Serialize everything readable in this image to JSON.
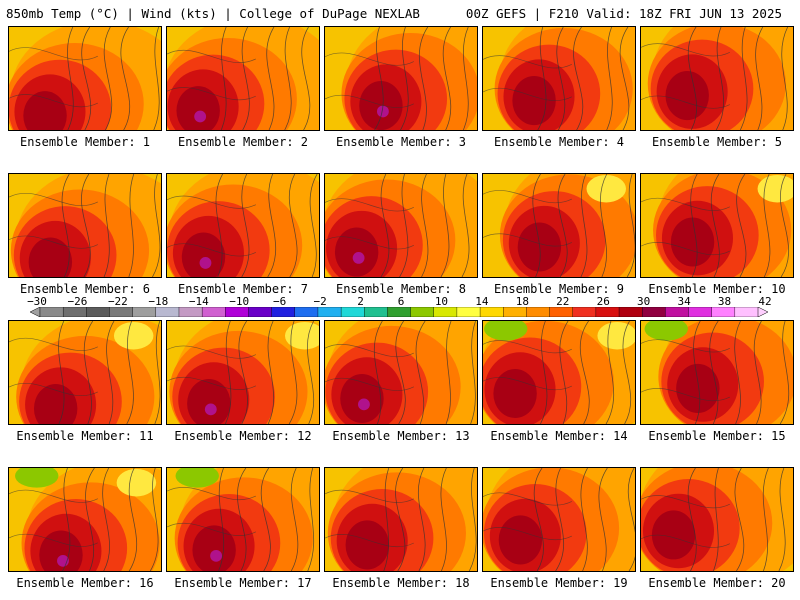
{
  "header": {
    "left": "850mb Temp (°C) | Wind (kts) | College of DuPage NEXLAB",
    "right": "00Z GEFS | F210 Valid: 18Z FRI JUN 13 2025"
  },
  "colors": {
    "page_background": "#ffffff",
    "panel_base": "#f7c300"
  },
  "panels": [
    {
      "label": "Ensemble Member: 1"
    },
    {
      "label": "Ensemble Member: 2"
    },
    {
      "label": "Ensemble Member: 3"
    },
    {
      "label": "Ensemble Member: 4"
    },
    {
      "label": "Ensemble Member: 5"
    },
    {
      "label": "Ensemble Member: 6"
    },
    {
      "label": "Ensemble Member: 7"
    },
    {
      "label": "Ensemble Member: 8"
    },
    {
      "label": "Ensemble Member: 9"
    },
    {
      "label": "Ensemble Member: 10"
    },
    {
      "label": "Ensemble Member: 11"
    },
    {
      "label": "Ensemble Member: 12"
    },
    {
      "label": "Ensemble Member: 13"
    },
    {
      "label": "Ensemble Member: 14"
    },
    {
      "label": "Ensemble Member: 15"
    },
    {
      "label": "Ensemble Member: 16"
    },
    {
      "label": "Ensemble Member: 17"
    },
    {
      "label": "Ensemble Member: 18"
    },
    {
      "label": "Ensemble Member: 19"
    },
    {
      "label": "Ensemble Member: 20"
    }
  ],
  "colorbar": {
    "tick_labels": [
      "−30",
      "−26",
      "−22",
      "−18",
      "−14",
      "−10",
      "−6",
      "−2",
      "2",
      "6",
      "10",
      "14",
      "18",
      "22",
      "26",
      "30",
      "34",
      "38",
      "42"
    ],
    "colors": [
      "#8a8a8a",
      "#6f6f6f",
      "#5c5c5c",
      "#7a7a7a",
      "#9e9e9e",
      "#b8b8d0",
      "#c49ac4",
      "#d060d0",
      "#b000d8",
      "#6a00c8",
      "#2020e0",
      "#1e6ef0",
      "#20b0f0",
      "#20d8d8",
      "#20c090",
      "#30a030",
      "#8cc800",
      "#d8e800",
      "#ffff40",
      "#ffd800",
      "#ffb000",
      "#ff8c00",
      "#ff6000",
      "#f03020",
      "#d81010",
      "#b00010",
      "#900040",
      "#c010a0",
      "#e030e0",
      "#ff80ff",
      "#ffc0ff"
    ]
  }
}
